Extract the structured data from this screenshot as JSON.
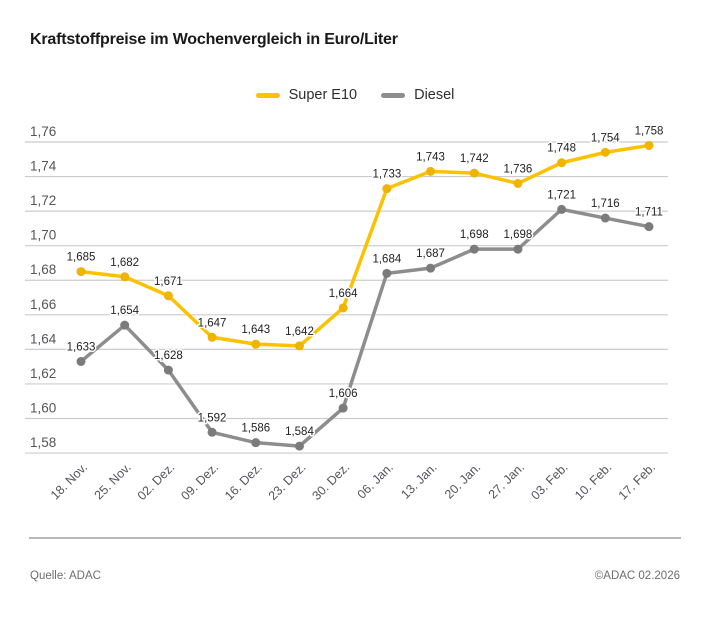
{
  "chart_data": {
    "type": "line",
    "title": "Kraftstoffpreise im Wochenvergleich in Euro/Liter",
    "categories": [
      "18. Nov.",
      "25. Nov.",
      "02. Dez.",
      "09. Dez.",
      "16. Dez.",
      "23. Dez.",
      "30. Dez.",
      "06. Jan.",
      "13. Jan.",
      "20. Jan.",
      "27. Jan.",
      "03. Feb.",
      "10. Feb.",
      "17. Feb."
    ],
    "series": [
      {
        "name": "Super E10",
        "color": "#FCC200",
        "dot_color": "#EFB300",
        "values": [
          1.685,
          1.682,
          1.671,
          1.647,
          1.643,
          1.642,
          1.664,
          1.733,
          1.743,
          1.742,
          1.736,
          1.748,
          1.754,
          1.758
        ],
        "labels": [
          "1,685",
          "1,682",
          "1,671",
          "1,647",
          "1,643",
          "1,642",
          "1,664",
          "1,733",
          "1,743",
          "1,742",
          "1,736",
          "1,748",
          "1,754",
          "1,758"
        ]
      },
      {
        "name": "Diesel",
        "color": "#8D8D8D",
        "dot_color": "#7B7B7B",
        "values": [
          1.633,
          1.654,
          1.628,
          1.592,
          1.586,
          1.584,
          1.606,
          1.684,
          1.687,
          1.698,
          1.698,
          1.721,
          1.716,
          1.711
        ],
        "labels": [
          "1,633",
          "1,654",
          "1,628",
          "1,592",
          "1,586",
          "1,584",
          "1,606",
          "1,684",
          "1,687",
          "1,698",
          "1,698",
          "1,721",
          "1,716",
          "1,711"
        ]
      }
    ],
    "ylim": [
      1.58,
      1.76
    ],
    "ytick_step": 0.02,
    "ytick_labels": [
      "1,76",
      "1,74",
      "1,72",
      "1,70",
      "1,68",
      "1,66",
      "1,64",
      "1,62",
      "1,60",
      "1,58"
    ],
    "grid": true,
    "legend_position": "top-center",
    "xlabel": "",
    "ylabel": ""
  },
  "colors": {
    "gridline": "#cccccc",
    "tick_text": "#55555a",
    "data_label": "#222222",
    "divider": "#b9b9b9"
  },
  "footer": {
    "source": "Quelle: ADAC",
    "copyright": "©ADAC 02.2026"
  }
}
